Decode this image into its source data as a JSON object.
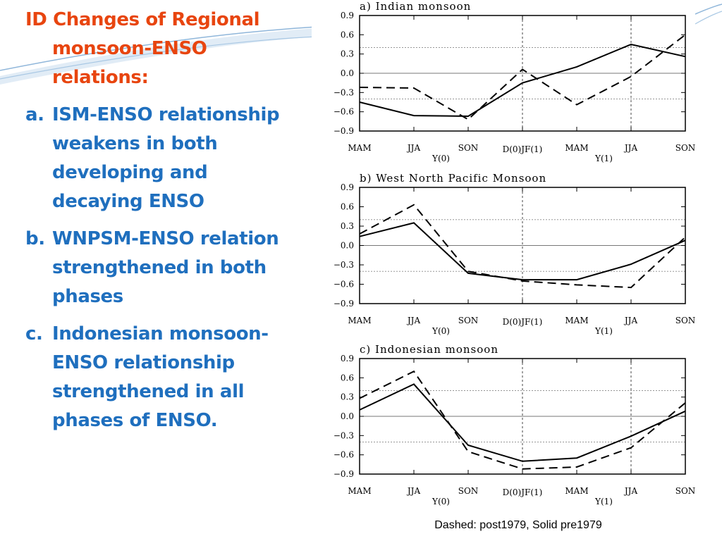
{
  "slide": {
    "heading_line1": "ID Changes of Regional",
    "heading_line2": "monsoon-ENSO",
    "heading_line3": "relations:",
    "points": [
      {
        "marker": "a.",
        "lines": [
          "ISM-ENSO relationship",
          "weakens in both",
          "developing and",
          "decaying ENSO"
        ]
      },
      {
        "marker": "b.",
        "lines": [
          "WNPSM-ENSO relation",
          "strengthened in both",
          "phases"
        ]
      },
      {
        "marker": "c.",
        "lines": [
          "Indonesian monsoon-",
          "ENSO relationship",
          "strengthened in all",
          "phases of ENSO."
        ]
      }
    ],
    "footnote": "Dashed: post1979, Solid pre1979",
    "colors": {
      "heading": "#e8450f",
      "body": "#1f6fbe",
      "decoration": "#8fb6da"
    }
  },
  "chart_data": [
    {
      "type": "line",
      "title": "a)  Indian  monsoon",
      "categories": [
        "MAM",
        "JJA",
        "SON",
        "D(0)JF(1)",
        "MAM",
        "JJA",
        "SON"
      ],
      "year_labels": [
        {
          "text": "Y(0)",
          "at": 1.5
        },
        {
          "text": "Y(1)",
          "at": 4.5
        }
      ],
      "ylim": [
        -0.9,
        0.9
      ],
      "yticks": [
        0.9,
        0.6,
        0.3,
        0.0,
        -0.3,
        -0.6,
        -0.9
      ],
      "ytick_labels": [
        "0.9",
        "0.6",
        "0.3",
        "0.0",
        "−0.3",
        "−0.6",
        "−0.9"
      ],
      "reference_lines": [
        0.0
      ],
      "dashed_reference_lines": [
        0.4,
        -0.4
      ],
      "vertical_dashed_at": [
        3,
        5
      ],
      "series": [
        {
          "style": "solid",
          "values": [
            -0.45,
            -0.66,
            -0.67,
            -0.15,
            0.1,
            0.45,
            0.26
          ]
        },
        {
          "style": "dashed",
          "values": [
            -0.22,
            -0.23,
            -0.72,
            0.06,
            -0.49,
            -0.05,
            0.6
          ]
        }
      ]
    },
    {
      "type": "line",
      "title": "b)  West  North  Pacific  Monsoon",
      "categories": [
        "MAM",
        "JJA",
        "SON",
        "D(0)JF(1)",
        "MAM",
        "JJA",
        "SON"
      ],
      "year_labels": [
        {
          "text": "Y(0)",
          "at": 1.5
        },
        {
          "text": "Y(1)",
          "at": 4.5
        }
      ],
      "ylim": [
        -0.9,
        0.9
      ],
      "yticks": [
        0.9,
        0.6,
        0.3,
        0.0,
        -0.3,
        -0.6,
        -0.9
      ],
      "ytick_labels": [
        "0.9",
        "0.6",
        "0.3",
        "0.0",
        "−0.3",
        "−0.6",
        "−0.9"
      ],
      "reference_lines": [
        0.0
      ],
      "dashed_reference_lines": [
        0.4,
        -0.4
      ],
      "vertical_dashed_at": [
        3
      ],
      "series": [
        {
          "style": "solid",
          "values": [
            0.14,
            0.35,
            -0.43,
            -0.53,
            -0.53,
            -0.29,
            0.08
          ]
        },
        {
          "style": "dashed",
          "values": [
            0.18,
            0.63,
            -0.4,
            -0.55,
            -0.61,
            -0.65,
            0.13
          ]
        }
      ]
    },
    {
      "type": "line",
      "title": "c)  Indonesian  monsoon",
      "categories": [
        "MAM",
        "JJA",
        "SON",
        "D(0)JF(1)",
        "MAM",
        "JJA",
        "SON"
      ],
      "year_labels": [
        {
          "text": "Y(0)",
          "at": 1.5
        },
        {
          "text": "Y(1)",
          "at": 4.5
        }
      ],
      "ylim": [
        -0.9,
        0.9
      ],
      "yticks": [
        0.9,
        0.6,
        0.3,
        0.0,
        -0.3,
        -0.6,
        -0.9
      ],
      "ytick_labels": [
        "0.9",
        "0.6",
        "0.3",
        "0.0",
        "−0.3",
        "−0.6",
        "−0.9"
      ],
      "reference_lines": [
        0.0
      ],
      "dashed_reference_lines": [
        0.4,
        -0.4
      ],
      "vertical_dashed_at": [
        3,
        5
      ],
      "series": [
        {
          "style": "solid",
          "values": [
            0.1,
            0.5,
            -0.45,
            -0.7,
            -0.65,
            -0.31,
            0.08
          ]
        },
        {
          "style": "dashed",
          "values": [
            0.28,
            0.7,
            -0.55,
            -0.82,
            -0.79,
            -0.49,
            0.21
          ]
        }
      ]
    }
  ]
}
